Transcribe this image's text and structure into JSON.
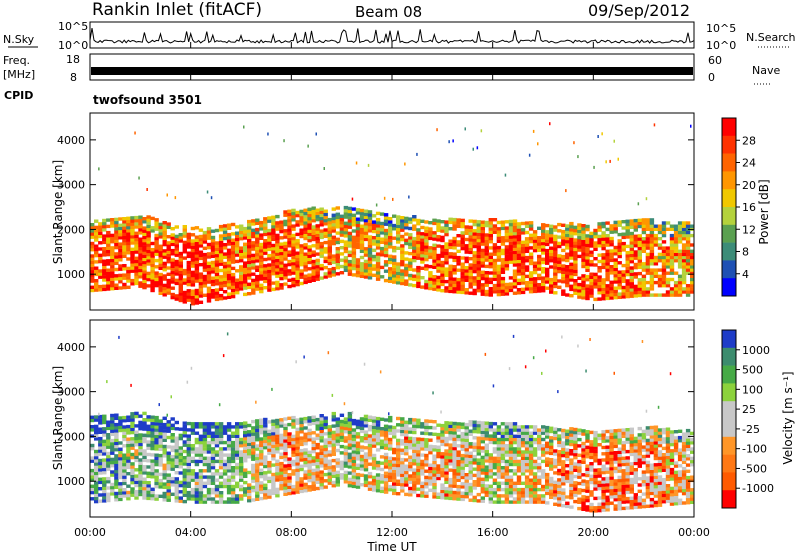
{
  "header": {
    "station": "Rankin Inlet (fitACF)",
    "beam": "Beam 08",
    "date": "09/Sep/2012"
  },
  "top_panels": {
    "nsky_label": "N.Sky",
    "nsky_ticks": [
      "10^5",
      "10^0"
    ],
    "nsky_right_ticks": [
      "10^5",
      "10^0"
    ],
    "nsearch_label": "N.Search",
    "freq_label": "Freq.",
    "freq_unit": "[MHz]",
    "freq_ticks": [
      "18",
      "8"
    ],
    "nave_ticks": [
      "60",
      "0"
    ],
    "nave_label": "Nave",
    "cpid_label": "CPID",
    "cpid_value": "twofsound 3501"
  },
  "colors": {
    "power_scale": [
      "#0000ff",
      "#1e50b4",
      "#3c8c78",
      "#5aa050",
      "#b4d23c",
      "#f0c800",
      "#ff9600",
      "#ff6400",
      "#ff3200",
      "#ff0000"
    ],
    "velocity_scale": [
      "#1e3cc8",
      "#3c8c6e",
      "#46aa46",
      "#8cd23c",
      "#c8c8c8",
      "#c8c8c8",
      "#ff9628",
      "#ff7814",
      "#ff5a00",
      "#ff0000"
    ]
  },
  "chart_data": [
    {
      "type": "heatmap",
      "name_panel": "power",
      "ylabel": "Slant Range [km]",
      "y_ticks": [
        "1000",
        "2000",
        "3000",
        "4000"
      ],
      "ylim": [
        200,
        4600
      ],
      "xlim_hours": [
        0,
        24
      ],
      "colorbar_label": "Power [dB]",
      "colorbar_ticks": [
        "4",
        "8",
        "12",
        "16",
        "20",
        "24",
        "28"
      ],
      "bands": [
        {
          "t": 0,
          "lo": 600,
          "hi": 2200,
          "level": 0.85
        },
        {
          "t": 2,
          "lo": 700,
          "hi": 2300,
          "level": 0.8
        },
        {
          "t": 4,
          "lo": 300,
          "hi": 2000,
          "level": 0.9
        },
        {
          "t": 6,
          "lo": 500,
          "hi": 2100,
          "level": 0.75
        },
        {
          "t": 8,
          "lo": 700,
          "hi": 2400,
          "level": 0.85
        },
        {
          "t": 10,
          "lo": 1000,
          "hi": 2500,
          "level": 0.6
        },
        {
          "t": 12,
          "lo": 800,
          "hi": 2300,
          "level": 0.55
        },
        {
          "t": 14,
          "lo": 600,
          "hi": 2200,
          "level": 0.8
        },
        {
          "t": 16,
          "lo": 500,
          "hi": 2200,
          "level": 0.85
        },
        {
          "t": 18,
          "lo": 600,
          "hi": 2100,
          "level": 0.8
        },
        {
          "t": 20,
          "lo": 400,
          "hi": 2100,
          "level": 0.85
        },
        {
          "t": 22,
          "lo": 500,
          "hi": 2200,
          "level": 0.7
        },
        {
          "t": 24,
          "lo": 500,
          "hi": 2100,
          "level": 0.65
        }
      ]
    },
    {
      "type": "heatmap",
      "name_panel": "velocity",
      "ylabel": "Slant Range [km]",
      "y_ticks": [
        "1000",
        "2000",
        "3000",
        "4000"
      ],
      "ylim": [
        200,
        4600
      ],
      "xlim_hours": [
        0,
        24
      ],
      "xlabel": "Time UT",
      "x_ticks": [
        "00:00",
        "04:00",
        "08:00",
        "12:00",
        "16:00",
        "20:00",
        "00:00"
      ],
      "colorbar_label": "Velocity [m s⁻¹]",
      "colorbar_ticks": [
        "1000",
        "500",
        "100",
        "25",
        "-25",
        "-100",
        "-500",
        "-1000"
      ],
      "bands": [
        {
          "t": 0,
          "lo": 500,
          "hi": 2400,
          "level": 0.25
        },
        {
          "t": 2,
          "lo": 600,
          "hi": 2500,
          "level": 0.35
        },
        {
          "t": 4,
          "lo": 500,
          "hi": 2300,
          "level": 0.3
        },
        {
          "t": 6,
          "lo": 500,
          "hi": 2300,
          "level": 0.35
        },
        {
          "t": 8,
          "lo": 700,
          "hi": 2400,
          "level": 0.7
        },
        {
          "t": 10,
          "lo": 900,
          "hi": 2500,
          "level": 0.45
        },
        {
          "t": 12,
          "lo": 700,
          "hi": 2400,
          "level": 0.6
        },
        {
          "t": 14,
          "lo": 600,
          "hi": 2300,
          "level": 0.65
        },
        {
          "t": 16,
          "lo": 500,
          "hi": 2300,
          "level": 0.5
        },
        {
          "t": 18,
          "lo": 500,
          "hi": 2200,
          "level": 0.6
        },
        {
          "t": 20,
          "lo": 300,
          "hi": 2100,
          "level": 0.8
        },
        {
          "t": 22,
          "lo": 400,
          "hi": 2200,
          "level": 0.7
        },
        {
          "t": 24,
          "lo": 500,
          "hi": 2100,
          "level": 0.6
        }
      ]
    }
  ]
}
